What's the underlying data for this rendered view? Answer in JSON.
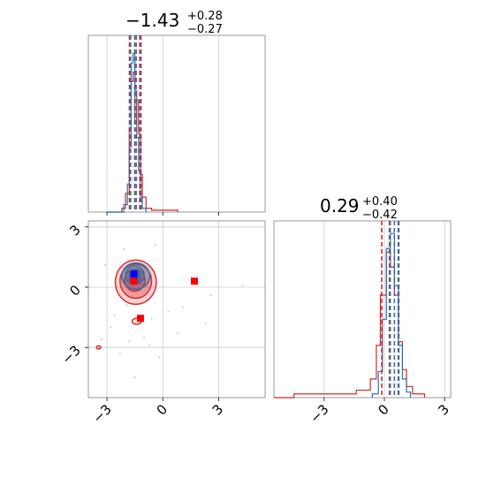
{
  "chart_data": {
    "type": "corner",
    "colors": {
      "red": "#d62728",
      "blue": "#1f77b4",
      "grid": "#cccccc",
      "frame": "#808080"
    },
    "panels": [
      {
        "id": "hist-param1",
        "kind": "histogram",
        "title": {
          "value": "−1.43",
          "plus": "+0.28",
          "minus": "−0.27"
        },
        "xlim": [
          -4,
          5.5
        ],
        "xticks": [
          -3,
          0,
          3
        ],
        "show_tick_labels": false,
        "series": [
          {
            "color": "red",
            "bins": [
              [
                -3.0,
                -2.2,
                0
              ],
              [
                -2.2,
                -2.0,
                0.02
              ],
              [
                -2.0,
                -1.8,
                0.1
              ],
              [
                -1.8,
                -1.7,
                0.35
              ],
              [
                -1.7,
                -1.6,
                0.7
              ],
              [
                -1.6,
                -1.5,
                0.75
              ],
              [
                -1.5,
                -1.4,
                0.48
              ],
              [
                -1.4,
                -1.3,
                0.6
              ],
              [
                -1.3,
                -1.2,
                0.42
              ],
              [
                -1.2,
                -1.1,
                0.2
              ],
              [
                -1.1,
                -0.9,
                0.08
              ],
              [
                -0.9,
                -0.6,
                0.02
              ],
              [
                -0.6,
                0.8,
                0.01
              ]
            ]
          },
          {
            "color": "blue",
            "bins": [
              [
                -3.0,
                -2.1,
                0
              ],
              [
                -2.1,
                -1.9,
                0.04
              ],
              [
                -1.9,
                -1.8,
                0.15
              ],
              [
                -1.8,
                -1.7,
                0.45
              ],
              [
                -1.7,
                -1.6,
                0.8
              ],
              [
                -1.6,
                -1.5,
                0.85
              ],
              [
                -1.5,
                -1.4,
                0.65
              ],
              [
                -1.4,
                -1.3,
                0.4
              ],
              [
                -1.3,
                -1.2,
                0.22
              ],
              [
                -1.2,
                -1.1,
                0.08
              ],
              [
                -1.1,
                -0.9,
                0.02
              ]
            ]
          }
        ],
        "quantiles": {
          "red": [
            -1.79,
            -1.43,
            -1.17
          ],
          "blue": [
            -1.73,
            -1.51,
            -1.24
          ]
        }
      },
      {
        "id": "scatter-param1-param2",
        "kind": "2d",
        "xlim": [
          -4,
          5.5
        ],
        "ylim": [
          -5.5,
          3.3
        ],
        "xticks": [
          -3,
          0,
          3
        ],
        "yticks": [
          -3,
          0,
          3
        ],
        "xtick_labels": [
          "−3",
          "0",
          "3"
        ],
        "ytick_labels": [
          "−3",
          "0",
          "3"
        ],
        "points": [
          [
            -3.1,
            1.1
          ],
          [
            -2.6,
            -1.4
          ],
          [
            -2.3,
            -3.3
          ],
          [
            -1.8,
            -2.7
          ],
          [
            -1.5,
            -4.5
          ],
          [
            -1.0,
            -2.5
          ],
          [
            -0.6,
            -1.6
          ],
          [
            -0.4,
            2.1
          ],
          [
            -0.2,
            -3.5
          ],
          [
            0.3,
            -1.2
          ],
          [
            1.1,
            -1.0
          ],
          [
            2.3,
            -1.8
          ],
          [
            2.6,
            -0.4
          ],
          [
            4.3,
            0.1
          ],
          [
            -2.8,
            -2.0
          ],
          [
            -1.9,
            -0.9
          ],
          [
            -0.7,
            -2.9
          ],
          [
            0.8,
            -2.3
          ],
          [
            -3.3,
            -2.6
          ],
          [
            -2.1,
            1.9
          ]
        ],
        "contours_red": [
          {
            "cx": -1.45,
            "cy": 0.25,
            "rx": 1.1,
            "ry": 1.1
          },
          {
            "cx": -1.45,
            "cy": 0.3,
            "rx": 0.85,
            "ry": 0.85
          },
          {
            "cx": -1.5,
            "cy": 0.35,
            "rx": 0.55,
            "ry": 0.55
          },
          {
            "cx": -1.5,
            "cy": 0.45,
            "rx": 0.3,
            "ry": 0.3
          },
          {
            "cx": -1.4,
            "cy": -1.7,
            "rx": 0.25,
            "ry": 0.15
          },
          {
            "cx": -3.45,
            "cy": -3.0,
            "rx": 0.12,
            "ry": 0.08
          }
        ],
        "contours_blue": [
          {
            "cx": -1.45,
            "cy": 0.55,
            "rx": 0.75,
            "ry": 0.65
          },
          {
            "cx": -1.5,
            "cy": 0.6,
            "rx": 0.5,
            "ry": 0.45
          },
          {
            "cx": -1.5,
            "cy": 0.6,
            "rx": 0.28,
            "ry": 0.25
          }
        ],
        "markers": [
          {
            "color": "blue",
            "x": -1.55,
            "y": 0.65
          },
          {
            "color": "red",
            "x": -1.55,
            "y": 0.3
          },
          {
            "color": "red",
            "x": 1.7,
            "y": 0.3
          },
          {
            "color": "red",
            "x": -1.2,
            "y": -1.55
          }
        ]
      },
      {
        "id": "hist-param2",
        "kind": "histogram",
        "title": {
          "value": "0.29",
          "plus": "+0.40",
          "minus": "−0.42"
        },
        "xlim": [
          -5.5,
          3.3
        ],
        "xticks": [
          -3,
          0,
          3
        ],
        "xtick_labels": [
          "−3",
          "0",
          "3"
        ],
        "show_tick_labels": true,
        "series": [
          {
            "color": "red",
            "bins": [
              [
                -5.5,
                -4.5,
                0
              ],
              [
                -4.5,
                -3.0,
                0.02
              ],
              [
                -3.0,
                -1.4,
                0.02
              ],
              [
                -1.4,
                -0.7,
                0.04
              ],
              [
                -0.7,
                -0.4,
                0.1
              ],
              [
                -0.4,
                -0.2,
                0.28
              ],
              [
                -0.2,
                0.1,
                0.55
              ],
              [
                0.1,
                0.3,
                0.78
              ],
              [
                0.3,
                0.5,
                0.7
              ],
              [
                0.5,
                0.7,
                0.55
              ],
              [
                0.7,
                0.9,
                0.3
              ],
              [
                0.9,
                1.1,
                0.15
              ],
              [
                1.1,
                1.4,
                0.06
              ],
              [
                1.4,
                2.0,
                0.02
              ]
            ]
          },
          {
            "color": "blue",
            "bins": [
              [
                -0.6,
                -0.3,
                0.02
              ],
              [
                -0.3,
                -0.1,
                0.14
              ],
              [
                -0.1,
                0.1,
                0.42
              ],
              [
                0.1,
                0.3,
                0.8
              ],
              [
                0.3,
                0.5,
                0.88
              ],
              [
                0.5,
                0.7,
                0.6
              ],
              [
                0.7,
                0.9,
                0.28
              ],
              [
                0.9,
                1.1,
                0.1
              ],
              [
                1.1,
                1.3,
                0.03
              ]
            ]
          }
        ],
        "quantiles": {
          "red": [
            -0.13,
            0.29,
            0.69
          ],
          "blue": [
            0.25,
            0.5,
            0.72
          ]
        }
      }
    ]
  }
}
